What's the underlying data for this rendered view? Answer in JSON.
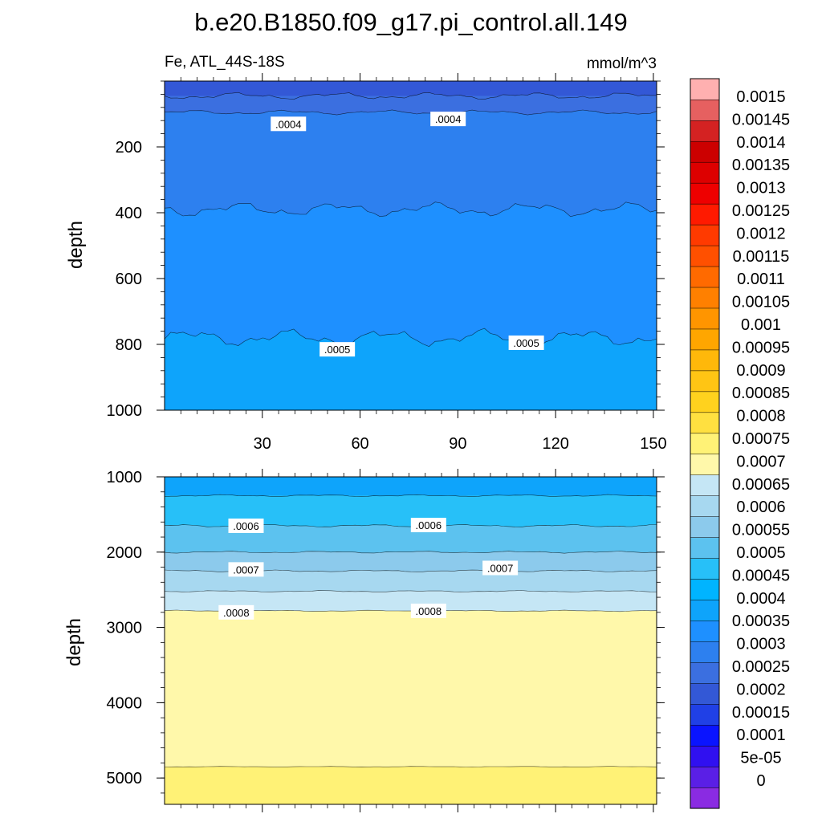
{
  "figure": {
    "title": "b.e20.B1850.f09_g17.pi_control.all.149",
    "variable_region": "Fe, ATL_44S-18S",
    "units": "mmol/m^3"
  },
  "colors": {
    "scale": [
      "#8a2be2",
      "#5a1fe6",
      "#3010f0",
      "#0a14ff",
      "#2040e6",
      "#3358d6",
      "#3b6fe0",
      "#2d80ef",
      "#1e90ff",
      "#0ea4fb",
      "#00b4ff",
      "#27c0f8",
      "#5cc2ef",
      "#8ccaec",
      "#a7d8f0",
      "#c5e6f5",
      "#fff8aa",
      "#fff276",
      "#ffe040",
      "#ffd21e",
      "#ffc514",
      "#ffb80a",
      "#ffa600",
      "#ff9500",
      "#ff8000",
      "#ff6a00",
      "#ff5000",
      "#ff3a00",
      "#ff1a00",
      "#ee0000",
      "#dd0000",
      "#cc0000",
      "#d42222",
      "#e66060",
      "#ffb0b0"
    ]
  },
  "colorbar": {
    "labels": [
      "0",
      "5e-05",
      "0.0001",
      "0.00015",
      "0.0002",
      "0.00025",
      "0.0003",
      "0.00035",
      "0.0004",
      "0.00045",
      "0.0005",
      "0.00055",
      "0.0006",
      "0.00065",
      "0.0007",
      "0.00075",
      "0.0008",
      "0.00085",
      "0.0009",
      "0.00095",
      "0.001",
      "0.00105",
      "0.0011",
      "0.00115",
      "0.0012",
      "0.00125",
      "0.0013",
      "0.00135",
      "0.0014",
      "0.00145",
      "0.0015"
    ]
  },
  "chart_data": [
    {
      "type": "contour",
      "panel": "upper",
      "title": "b.e20.B1850.f09_g17.pi_control.all.149",
      "subtitle_left": "Fe, ATL_44S-18S",
      "subtitle_right": "mmol/m^3",
      "xlabel": "",
      "ylabel": "depth",
      "xlim": [
        0,
        151
      ],
      "ylim": [
        1000,
        0
      ],
      "x_ticks": [
        30,
        60,
        90,
        120,
        150
      ],
      "x_tick_labels": [
        "30",
        "60",
        "90",
        "120",
        "150"
      ],
      "y_ticks": [
        200,
        400,
        600,
        800,
        1000
      ],
      "y_tick_labels": [
        "200",
        "400",
        "600",
        "800",
        "1000"
      ],
      "bands": [
        {
          "range": "0.00025-0.0003",
          "color_index": 5,
          "top_depth": 0,
          "mean_depth": 45,
          "wiggle": 12
        },
        {
          "range": "0.0003-0.00035",
          "color_index": 6,
          "top_depth": 45,
          "mean_depth": 95,
          "wiggle": 8
        },
        {
          "range": "0.00035-0.0004",
          "color_index": 7,
          "top_depth": 95,
          "mean_depth": 390,
          "wiggle": 25
        },
        {
          "range": "0.0004-0.00045",
          "color_index": 8,
          "top_depth": 390,
          "mean_depth": 780,
          "wiggle": 30
        },
        {
          "range": "0.00045-0.0005",
          "color_index": 9,
          "top_depth": 780,
          "mean_depth": 1000,
          "wiggle": 0
        }
      ],
      "contour_labels": [
        {
          "text": ".0004",
          "x": 38,
          "depth": 130
        },
        {
          "text": ".0004",
          "x": 87,
          "depth": 115
        },
        {
          "text": ".0005",
          "x": 53,
          "depth": 815
        },
        {
          "text": ".0005",
          "x": 111,
          "depth": 795
        }
      ]
    },
    {
      "type": "contour",
      "panel": "lower",
      "xlabel": "",
      "ylabel": "depth",
      "xlim": [
        0,
        151
      ],
      "ylim": [
        5350,
        1000
      ],
      "x_ticks": [
        30,
        60,
        90,
        120,
        150
      ],
      "x_tick_labels": [],
      "y_ticks": [
        1000,
        2000,
        3000,
        4000,
        5000
      ],
      "y_tick_labels": [
        "1000",
        "2000",
        "3000",
        "4000",
        "5000"
      ],
      "bands": [
        {
          "range": "0.00045-0.0005",
          "color_index": 9,
          "top_depth": 1000,
          "mean_depth": 1250,
          "wiggle": 15
        },
        {
          "range": "0.0005-0.00055",
          "color_index": 11,
          "top_depth": 1250,
          "mean_depth": 1650,
          "wiggle": 20
        },
        {
          "range": "0.00055-0.0006",
          "color_index": 12,
          "top_depth": 1650,
          "mean_depth": 2000,
          "wiggle": 15
        },
        {
          "range": "0.0006-0.00065",
          "color_index": 13,
          "top_depth": 2000,
          "mean_depth": 2250,
          "wiggle": 15
        },
        {
          "range": "0.00065-0.0007",
          "color_index": 14,
          "top_depth": 2250,
          "mean_depth": 2520,
          "wiggle": 12
        },
        {
          "range": "0.0007-0.00075",
          "color_index": 15,
          "top_depth": 2520,
          "mean_depth": 2780,
          "wiggle": 10
        },
        {
          "range": "0.00075-0.0008",
          "color_index": 16,
          "top_depth": 2780,
          "mean_depth": 4850,
          "wiggle": 5
        },
        {
          "range": "0.0008-0.00085",
          "color_index": 17,
          "top_depth": 4850,
          "mean_depth": 5350,
          "wiggle": 0
        }
      ],
      "contour_labels": [
        {
          "text": ".0006",
          "x": 25,
          "depth": 1650
        },
        {
          "text": ".0006",
          "x": 81,
          "depth": 1640
        },
        {
          "text": ".0007",
          "x": 25,
          "depth": 2230
        },
        {
          "text": ".0007",
          "x": 103,
          "depth": 2210
        },
        {
          "text": ".0008",
          "x": 22,
          "depth": 2800
        },
        {
          "text": ".0008",
          "x": 81,
          "depth": 2780
        }
      ]
    }
  ]
}
